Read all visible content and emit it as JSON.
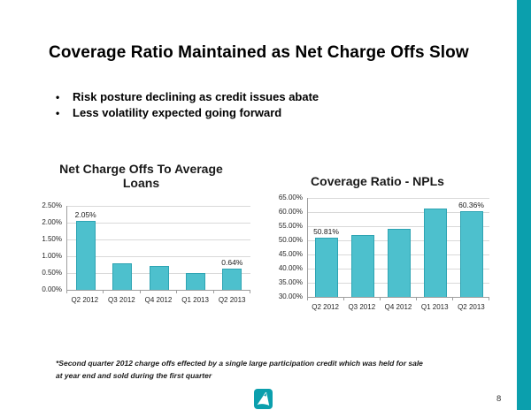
{
  "title": "Coverage Ratio Maintained as Net Charge Offs Slow",
  "bullets": [
    {
      "marker": "•",
      "text": "Risk posture declining as credit issues abate"
    },
    {
      "marker": "•",
      "text": "Less volatility expected going forward"
    }
  ],
  "footnote": {
    "line1": "*Second quarter 2012 charge offs effected by a single large participation credit which was held for sale",
    "line2": "at year end and sold during the first quarter"
  },
  "footer": {
    "logo_icon": "teal-sail-logo",
    "page_number": "8"
  },
  "colors": {
    "accent_teal": "#0b9fad",
    "bar_fill": "#4dc0cd",
    "bar_border": "#2ea4b3",
    "gridline": "#d9d9d9"
  },
  "chart_data": [
    {
      "type": "bar",
      "title": "Net Charge Offs To Average Loans",
      "title_lines": [
        "Net Charge Offs To Average",
        "Loans"
      ],
      "categories": [
        "Q2 2012",
        "Q3 2012",
        "Q4 2012",
        "Q1 2013",
        "Q2 2013"
      ],
      "values": [
        2.05,
        0.8,
        0.7,
        0.5,
        0.64
      ],
      "data_labels": [
        "2.05%",
        null,
        null,
        null,
        "0.64%"
      ],
      "ylim": [
        0,
        2.5
      ],
      "ytick_step": 0.5,
      "ytick_labels": [
        "0.00%",
        "0.50%",
        "1.00%",
        "1.50%",
        "2.00%",
        "2.50%"
      ],
      "xlabel": "",
      "ylabel": "",
      "grid": true,
      "legend": false
    },
    {
      "type": "bar",
      "title": "Coverage Ratio - NPLs",
      "title_lines": [
        "Coverage Ratio - NPLs"
      ],
      "categories": [
        "Q2 2012",
        "Q3 2012",
        "Q4 2012",
        "Q1 2013",
        "Q2 2013"
      ],
      "values": [
        50.81,
        52.0,
        54.0,
        61.2,
        60.36
      ],
      "data_labels": [
        "50.81%",
        null,
        null,
        null,
        "60.36%"
      ],
      "ylim": [
        30,
        65
      ],
      "ytick_step": 5,
      "ytick_labels": [
        "30.00%",
        "35.00%",
        "40.00%",
        "45.00%",
        "50.00%",
        "55.00%",
        "60.00%",
        "65.00%"
      ],
      "xlabel": "",
      "ylabel": "",
      "grid": true,
      "legend": false
    }
  ]
}
